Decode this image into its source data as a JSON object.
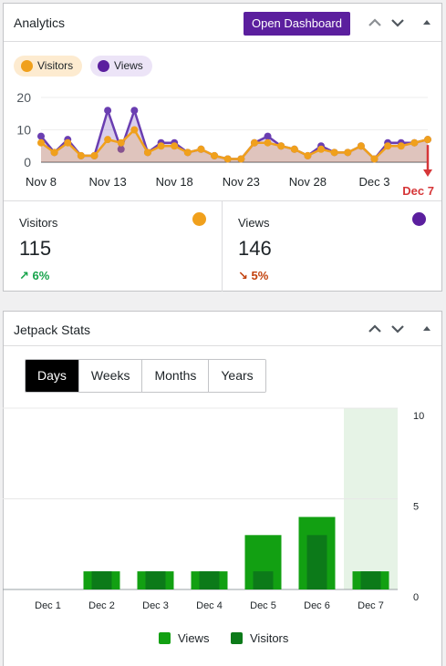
{
  "analytics": {
    "title": "Analytics",
    "open_dashboard_label": "Open Dashboard",
    "legend": {
      "visitors": "Visitors",
      "views": "Views"
    },
    "chart_data": {
      "type": "line",
      "x": [
        "Nov 8",
        "Nov 9",
        "Nov 10",
        "Nov 11",
        "Nov 12",
        "Nov 13",
        "Nov 14",
        "Nov 15",
        "Nov 16",
        "Nov 17",
        "Nov 18",
        "Nov 19",
        "Nov 20",
        "Nov 21",
        "Nov 22",
        "Nov 23",
        "Nov 24",
        "Nov 25",
        "Nov 26",
        "Nov 27",
        "Nov 28",
        "Nov 29",
        "Nov 30",
        "Dec 1",
        "Dec 2",
        "Dec 3",
        "Dec 4",
        "Dec 5",
        "Dec 6",
        "Dec 7"
      ],
      "x_tick_labels": [
        "Nov 8",
        "Nov 13",
        "Nov 18",
        "Nov 23",
        "Nov 28",
        "Dec 3"
      ],
      "highlight_label": "Dec 7",
      "y_ticks": [
        "20",
        "10",
        "0"
      ],
      "ylim": [
        0,
        20
      ],
      "series": [
        {
          "name": "Views",
          "color": "#6a3eb1",
          "values": [
            8,
            3,
            7,
            2,
            2,
            16,
            4,
            16,
            3,
            6,
            6,
            3,
            4,
            2,
            1,
            1,
            6,
            8,
            5,
            4,
            2,
            5,
            3,
            3,
            5,
            1,
            6,
            6,
            6,
            7
          ]
        },
        {
          "name": "Visitors",
          "color": "#f0a01c",
          "values": [
            6,
            3,
            6,
            2,
            2,
            7,
            6,
            10,
            3,
            5,
            5,
            3,
            4,
            2,
            1,
            1,
            6,
            6,
            5,
            4,
            2,
            4,
            3,
            3,
            5,
            1,
            5,
            5,
            6,
            7
          ]
        }
      ]
    },
    "stats": {
      "visitors": {
        "label": "Visitors",
        "value": "115",
        "change": "6%",
        "dot_color": "#f0a01c",
        "change_color": "#16a34a"
      },
      "views": {
        "label": "Views",
        "value": "146",
        "change": "5%",
        "dot_color": "#5b1f9e",
        "change_color": "#c2410c"
      }
    }
  },
  "jetpack": {
    "title": "Jetpack Stats",
    "tabs": [
      {
        "label": "Days",
        "active": true
      },
      {
        "label": "Weeks",
        "active": false
      },
      {
        "label": "Months",
        "active": false
      },
      {
        "label": "Years",
        "active": false
      }
    ],
    "legend": {
      "views": "Views",
      "visitors": "Visitors"
    },
    "chart_data": {
      "type": "bar",
      "categories": [
        "Dec 1",
        "Dec 2",
        "Dec 3",
        "Dec 4",
        "Dec 5",
        "Dec 6",
        "Dec 7"
      ],
      "y_ticks": [
        "10",
        "5",
        "0"
      ],
      "ylim": [
        0,
        10
      ],
      "highlight_category": "Dec 7",
      "series": [
        {
          "name": "Views",
          "color": "#12a012",
          "values": [
            0,
            1,
            1,
            1,
            3,
            4,
            1
          ]
        },
        {
          "name": "Visitors",
          "color": "#0c7a19",
          "values": [
            0,
            1,
            1,
            1,
            1,
            3,
            1
          ]
        }
      ]
    }
  }
}
